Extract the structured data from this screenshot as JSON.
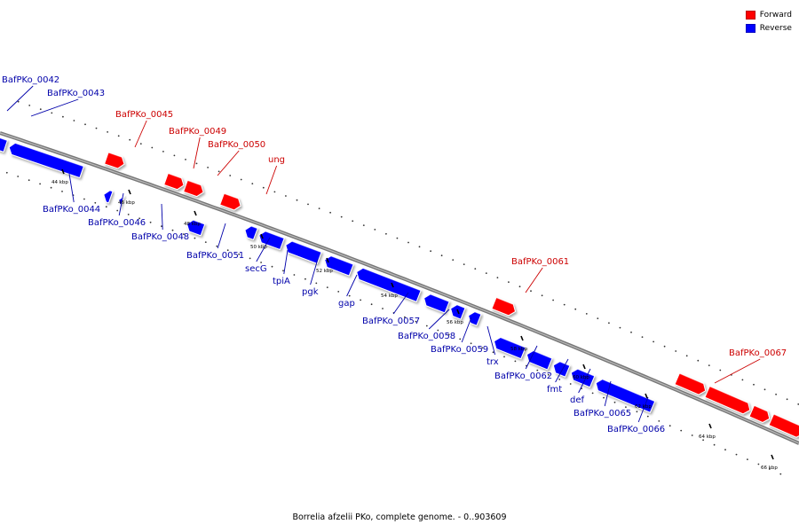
{
  "caption": "Borrelia afzelii PKo, complete genome. - 0..903609",
  "legend": [
    {
      "label": "Forward",
      "color": "#ff0000"
    },
    {
      "label": "Reverse",
      "color": "#0000ff"
    }
  ],
  "colors": {
    "forward": "#ff0000",
    "reverse": "#0000ff",
    "forward_label": "#cc0000",
    "reverse_label": "#0000aa",
    "backbone": "#777777"
  },
  "tick_labels": [
    "44 kbp",
    "46 kbp",
    "48 kbp",
    "50 kbp",
    "52 kbp",
    "54 kbp",
    "56 kbp",
    "58 kbp",
    "60 kbp",
    "62 kbp",
    "64 kbp",
    "66 kbp"
  ],
  "features": [
    {
      "name": "BafPKo_0042",
      "strand": "reverse"
    },
    {
      "name": "BafPKo_0043",
      "strand": "reverse"
    },
    {
      "name": "BafPKo_0044",
      "strand": "reverse"
    },
    {
      "name": "BafPKo_0045",
      "strand": "forward"
    },
    {
      "name": "BafPKo_0046",
      "strand": "reverse"
    },
    {
      "name": "BafPKo_0048",
      "strand": "reverse"
    },
    {
      "name": "BafPKo_0049",
      "strand": "forward"
    },
    {
      "name": "BafPKo_0050",
      "strand": "forward"
    },
    {
      "name": "ung",
      "strand": "forward"
    },
    {
      "name": "BafPKo_0051",
      "strand": "reverse"
    },
    {
      "name": "secG",
      "strand": "reverse"
    },
    {
      "name": "tpiA",
      "strand": "reverse"
    },
    {
      "name": "pgk",
      "strand": "reverse"
    },
    {
      "name": "gap",
      "strand": "reverse"
    },
    {
      "name": "BafPKo_0057",
      "strand": "reverse"
    },
    {
      "name": "BafPKo_0058",
      "strand": "reverse"
    },
    {
      "name": "BafPKo_0059",
      "strand": "reverse"
    },
    {
      "name": "trx",
      "strand": "reverse"
    },
    {
      "name": "BafPKo_0061",
      "strand": "forward"
    },
    {
      "name": "BafPKo_0062",
      "strand": "reverse"
    },
    {
      "name": "fmt",
      "strand": "reverse"
    },
    {
      "name": "def",
      "strand": "reverse"
    },
    {
      "name": "BafPKo_0065",
      "strand": "reverse"
    },
    {
      "name": "BafPKo_0066",
      "strand": "reverse"
    },
    {
      "name": "BafPKo_0067",
      "strand": "forward"
    }
  ]
}
